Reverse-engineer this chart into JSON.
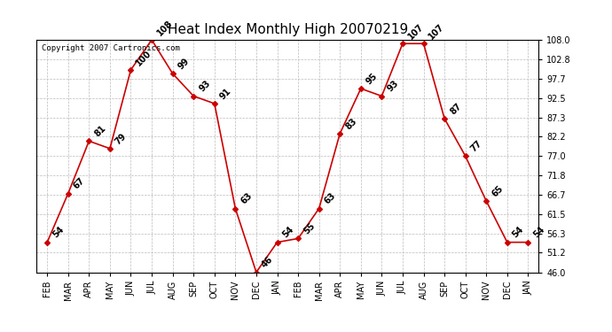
{
  "title": "Heat Index Monthly High 20070219",
  "copyright_text": "Copyright 2007 Cartronics.com",
  "x_labels": [
    "FEB",
    "MAR",
    "APR",
    "MAY",
    "JUN",
    "JUL",
    "AUG",
    "SEP",
    "OCT",
    "NOV",
    "DEC",
    "JAN",
    "FEB",
    "MAR",
    "APR",
    "MAY",
    "JUN",
    "JUL",
    "AUG",
    "SEP",
    "OCT",
    "NOV",
    "DEC",
    "JAN"
  ],
  "y_values": [
    54,
    67,
    81,
    79,
    100,
    108,
    99,
    93,
    91,
    63,
    46,
    54,
    55,
    63,
    83,
    95,
    93,
    107,
    107,
    87,
    77,
    65,
    54,
    54
  ],
  "ylim": [
    46.0,
    108.0
  ],
  "yticks": [
    46.0,
    51.2,
    56.3,
    61.5,
    66.7,
    71.8,
    77.0,
    82.2,
    87.3,
    92.5,
    97.7,
    102.8,
    108.0
  ],
  "line_color": "#cc0000",
  "marker_color": "#cc0000",
  "marker_style": "D",
  "marker_size": 3,
  "bg_color": "#ffffff",
  "plot_bg_color": "#ffffff",
  "grid_color": "#bbbbbb",
  "grid_style": "--",
  "title_fontsize": 11,
  "label_fontsize": 7,
  "tick_fontsize": 7,
  "copyright_fontsize": 6.5
}
